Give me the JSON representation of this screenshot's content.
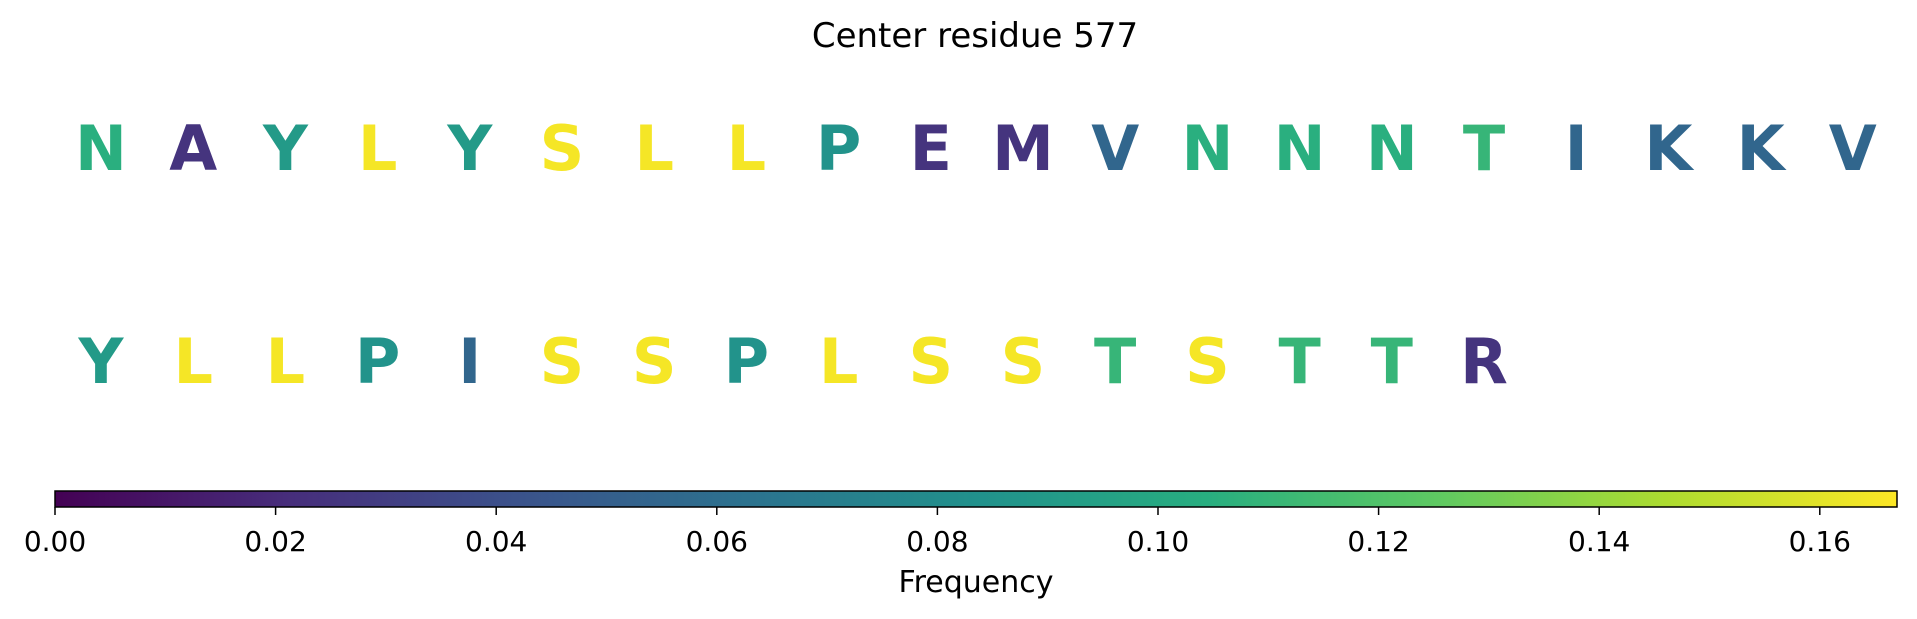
{
  "chart_data": {
    "type": "heatmap",
    "title": "Center residue 577",
    "rows": [
      {
        "residues": [
          "N",
          "A",
          "Y",
          "L",
          "Y",
          "S",
          "L",
          "L",
          "P",
          "E",
          "M",
          "V",
          "N",
          "N",
          "N",
          "T",
          "I",
          "K",
          "K",
          "V"
        ],
        "values": [
          0.105,
          0.025,
          0.09,
          0.165,
          0.09,
          0.165,
          0.165,
          0.165,
          0.085,
          0.025,
          0.025,
          0.055,
          0.105,
          0.105,
          0.105,
          0.11,
          0.055,
          0.055,
          0.055,
          0.055
        ]
      },
      {
        "residues": [
          "Y",
          "L",
          "L",
          "P",
          "I",
          "S",
          "S",
          "P",
          "L",
          "S",
          "S",
          "T",
          "S",
          "T",
          "T",
          "R"
        ],
        "values": [
          0.09,
          0.165,
          0.165,
          0.085,
          0.055,
          0.165,
          0.165,
          0.085,
          0.165,
          0.165,
          0.165,
          0.11,
          0.165,
          0.11,
          0.11,
          0.025
        ]
      }
    ],
    "colorbar": {
      "label": "Frequency",
      "colormap": "viridis",
      "range": [
        0,
        0.167
      ],
      "ticks": [
        0.0,
        0.02,
        0.04,
        0.06,
        0.08,
        0.1,
        0.12,
        0.14,
        0.16
      ],
      "tick_labels": [
        "0.00",
        "0.02",
        "0.04",
        "0.06",
        "0.08",
        "0.10",
        "0.12",
        "0.14",
        "0.16"
      ]
    }
  }
}
